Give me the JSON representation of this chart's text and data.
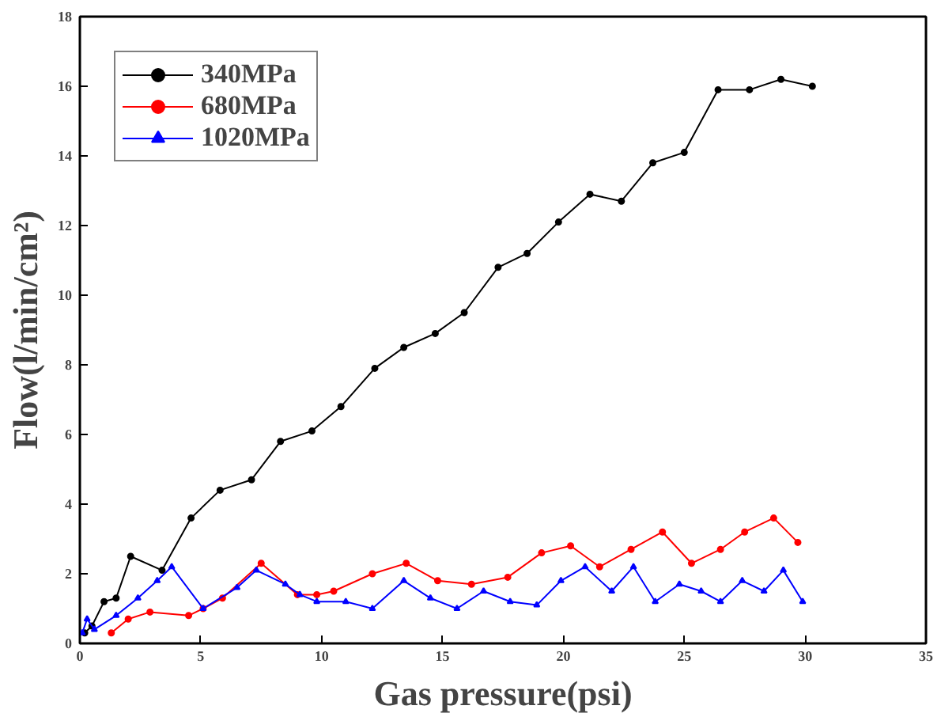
{
  "chart_data": {
    "type": "line",
    "xlabel": "Gas pressure(psi)",
    "ylabel": "Flow(l/min/cm²)",
    "xlim": [
      0,
      35
    ],
    "ylim": [
      0,
      18
    ],
    "xticks": [
      0,
      5,
      10,
      15,
      20,
      25,
      30,
      35
    ],
    "yticks": [
      0,
      2,
      4,
      6,
      8,
      10,
      12,
      14,
      16,
      18
    ],
    "grid": false,
    "legend": "top left",
    "line_style": "solid",
    "series": [
      {
        "name": "340MPa",
        "color": "#000000",
        "marker": "circle",
        "x": [
          0.2,
          0.5,
          1.0,
          1.5,
          2.1,
          3.4,
          4.6,
          5.8,
          7.1,
          8.3,
          9.6,
          10.8,
          12.2,
          13.4,
          14.7,
          15.9,
          17.3,
          18.5,
          19.8,
          21.1,
          22.4,
          23.7,
          25.0,
          26.4,
          27.7,
          29.0,
          30.3
        ],
        "values": [
          0.3,
          0.5,
          1.2,
          1.3,
          2.5,
          2.1,
          3.6,
          4.4,
          4.7,
          5.8,
          6.1,
          6.8,
          7.9,
          8.5,
          8.9,
          9.5,
          10.8,
          11.2,
          12.1,
          12.9,
          12.7,
          13.8,
          14.1,
          15.9,
          15.9,
          16.2,
          16.0
        ]
      },
      {
        "name": "680MPa",
        "color": "#ff0000",
        "marker": "circle",
        "x": [
          1.3,
          2.0,
          2.9,
          4.5,
          5.1,
          5.9,
          7.5,
          9.0,
          9.8,
          10.5,
          12.1,
          13.5,
          14.8,
          16.2,
          17.7,
          19.1,
          20.3,
          21.5,
          22.8,
          24.1,
          25.3,
          26.5,
          27.5,
          28.7,
          29.7
        ],
        "values": [
          0.3,
          0.7,
          0.9,
          0.8,
          1.0,
          1.3,
          2.3,
          1.4,
          1.4,
          1.5,
          2.0,
          2.3,
          1.8,
          1.7,
          1.9,
          2.6,
          2.8,
          2.2,
          2.7,
          3.2,
          2.3,
          2.7,
          3.2,
          3.6,
          2.9
        ]
      },
      {
        "name": "1020MPa",
        "color": "#0000ff",
        "marker": "triangle",
        "x": [
          0.1,
          0.3,
          0.6,
          1.5,
          2.4,
          3.2,
          3.8,
          5.1,
          6.5,
          7.3,
          8.5,
          9.1,
          9.8,
          11.0,
          12.1,
          13.4,
          14.5,
          15.6,
          16.7,
          17.8,
          18.9,
          19.9,
          20.9,
          22.0,
          22.9,
          23.8,
          24.8,
          25.7,
          26.5,
          27.4,
          28.3,
          29.1,
          29.9
        ],
        "values": [
          0.3,
          0.7,
          0.4,
          0.8,
          1.3,
          1.8,
          2.2,
          1.0,
          1.6,
          2.1,
          1.7,
          1.4,
          1.2,
          1.2,
          1.0,
          1.8,
          1.3,
          1.0,
          1.5,
          1.2,
          1.1,
          1.8,
          2.2,
          1.5,
          2.2,
          1.2,
          1.7,
          1.5,
          1.2,
          1.8,
          1.5,
          2.1,
          1.2
        ]
      }
    ]
  }
}
